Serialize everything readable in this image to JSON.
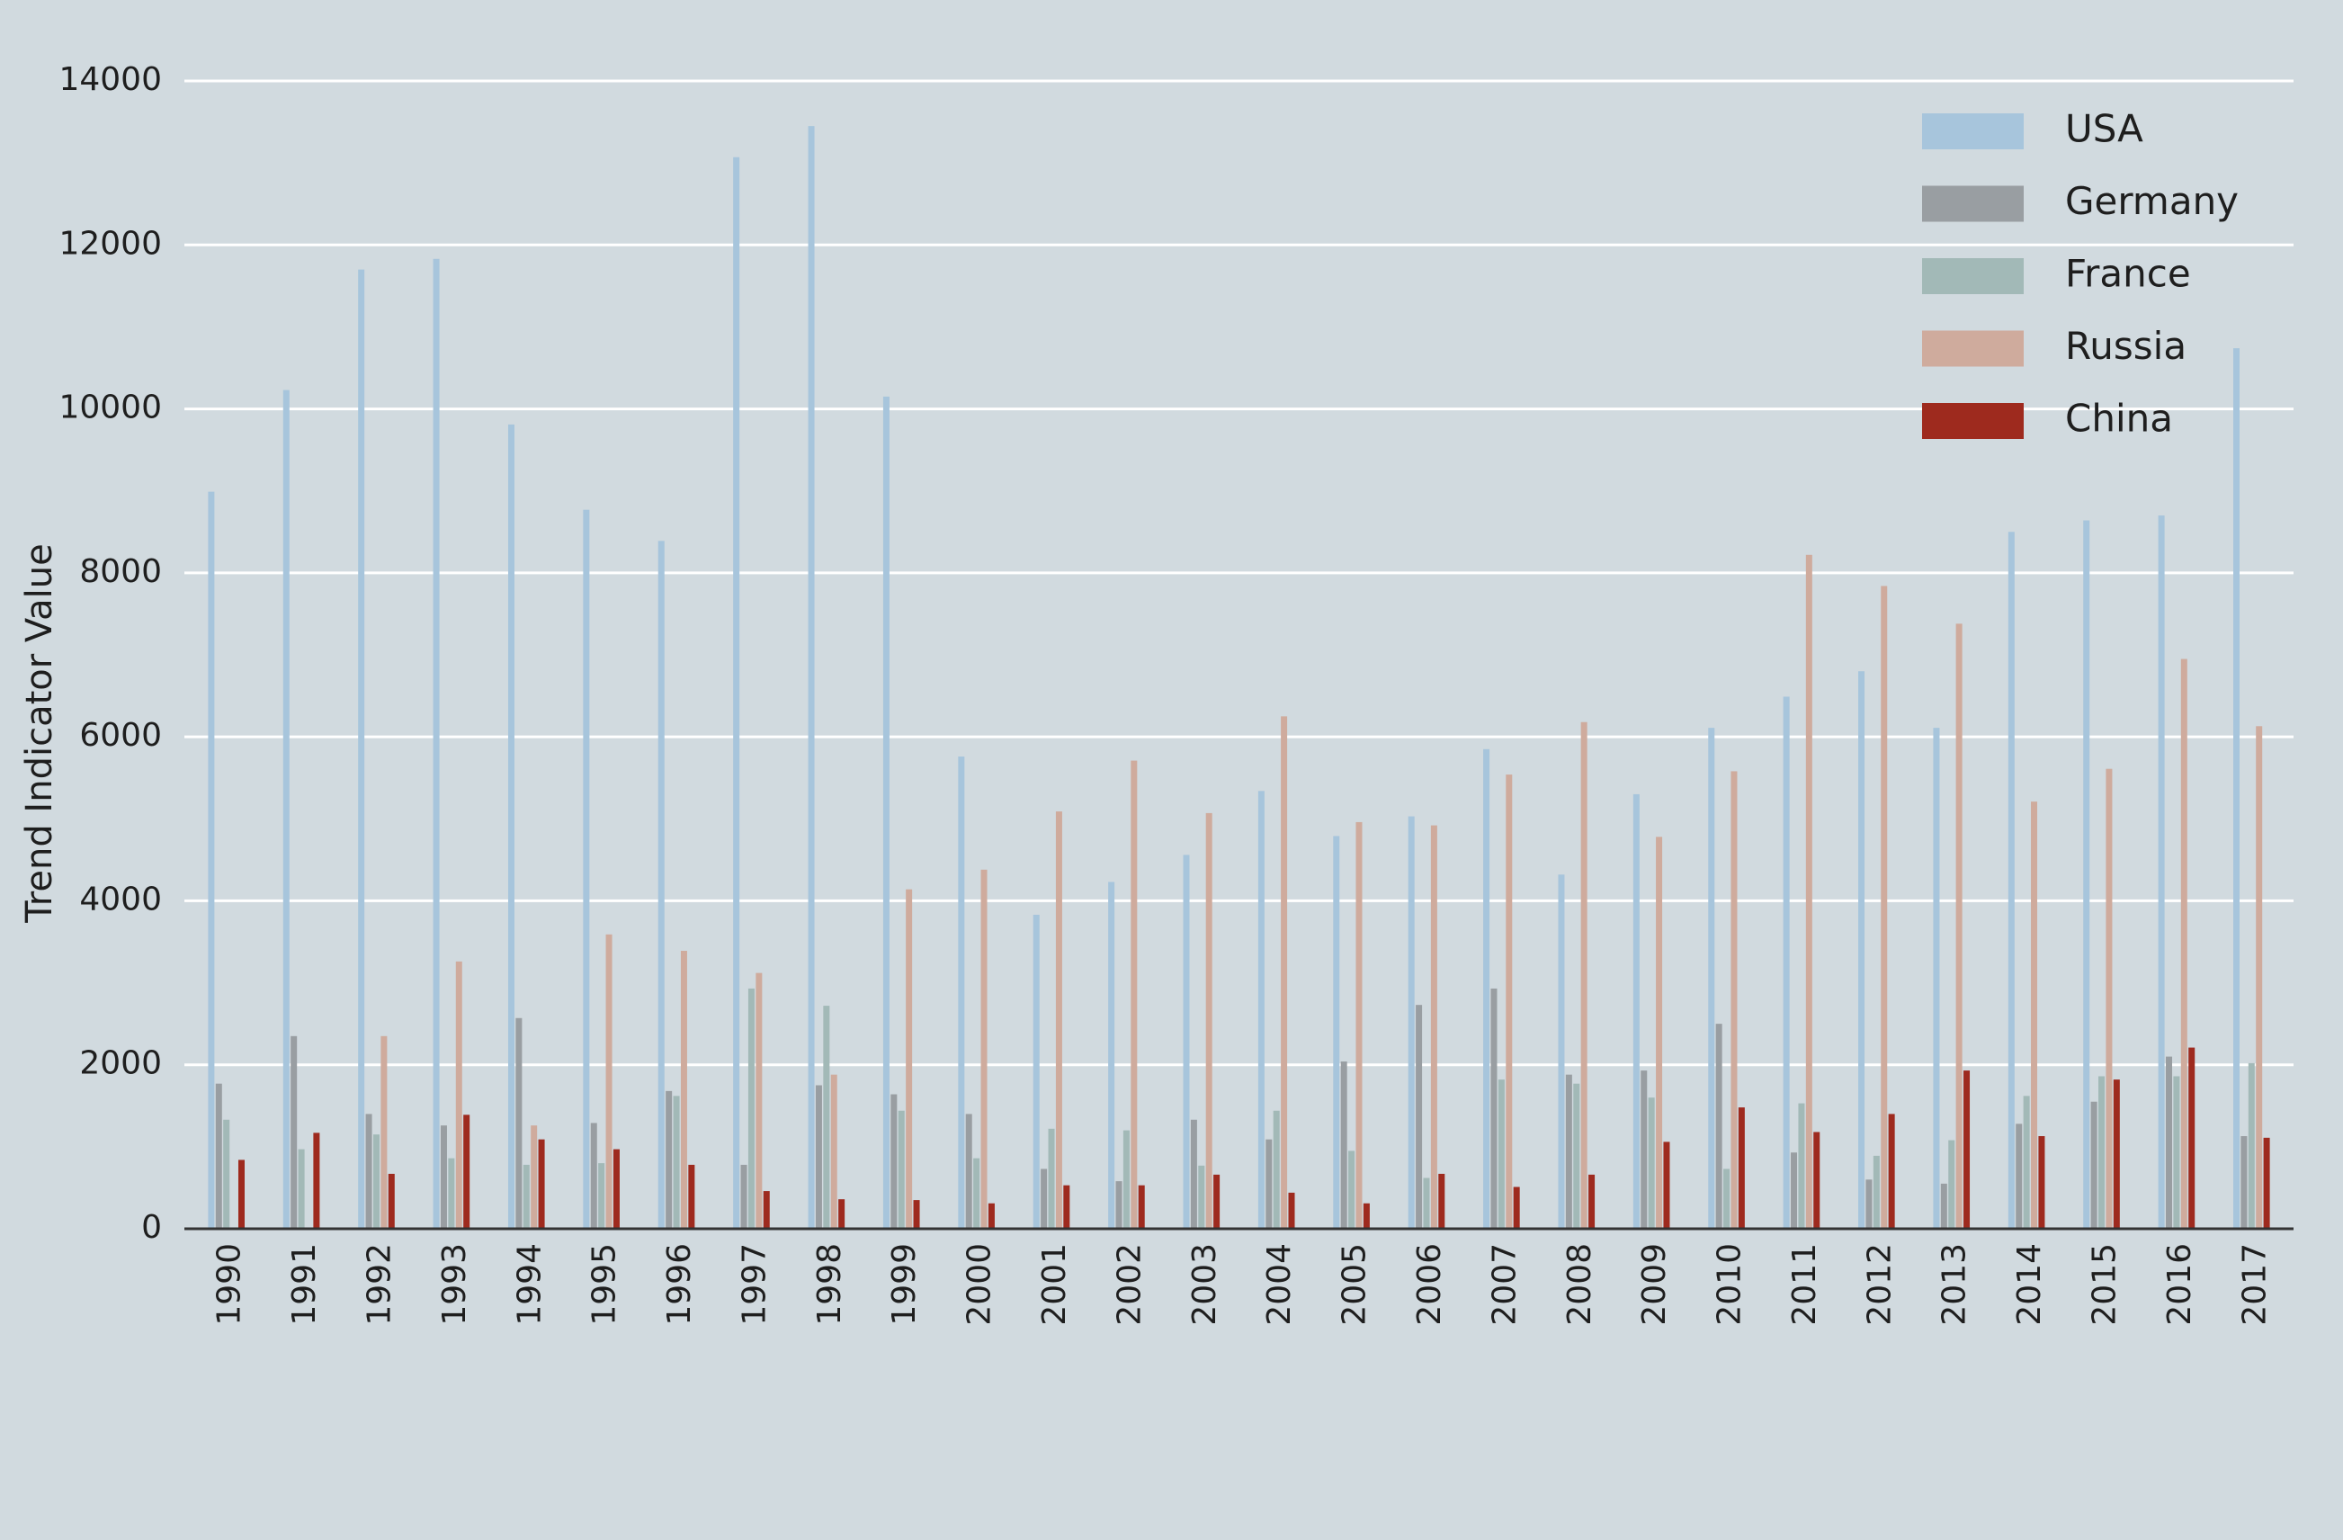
{
  "chart_data": {
    "type": "bar",
    "y_label": "Trend Indicator Value",
    "categories": [
      "1990",
      "1991",
      "1992",
      "1993",
      "1994",
      "1995",
      "1996",
      "1997",
      "1998",
      "1999",
      "2000",
      "2001",
      "2002",
      "2003",
      "2004",
      "2005",
      "2006",
      "2007",
      "2008",
      "2009",
      "2010",
      "2011",
      "2012",
      "2013",
      "2014",
      "2015",
      "2016",
      "2017"
    ],
    "series": [
      {
        "name": "USA",
        "color": "#a7c5dc",
        "values": [
          8990,
          10230,
          11700,
          11830,
          9810,
          8770,
          8390,
          13070,
          13450,
          10150,
          5760,
          3830,
          4230,
          4560,
          5340,
          4790,
          5030,
          5850,
          4320,
          5300,
          6110,
          6490,
          6800,
          6110,
          8500,
          8640,
          8700,
          10740
        ]
      },
      {
        "name": "Germany",
        "color": "#999ea2",
        "values": [
          1770,
          2350,
          1400,
          1260,
          2570,
          1290,
          1680,
          780,
          1750,
          1640,
          1400,
          730,
          580,
          1330,
          1090,
          2040,
          2730,
          2930,
          1880,
          1930,
          2500,
          930,
          600,
          550,
          1280,
          1550,
          2100,
          1130
        ]
      },
      {
        "name": "France",
        "color": "#a2b9b7",
        "values": [
          1330,
          970,
          1150,
          860,
          780,
          800,
          1620,
          2930,
          2720,
          1440,
          860,
          1220,
          1200,
          770,
          1440,
          950,
          620,
          1820,
          1770,
          1600,
          730,
          1530,
          890,
          1080,
          1620,
          1860,
          1860,
          2020
        ]
      },
      {
        "name": "Russia",
        "color": "#cfab9d",
        "values": [
          0,
          0,
          2350,
          3260,
          1260,
          3590,
          3390,
          3120,
          1880,
          4140,
          4380,
          5090,
          5710,
          5070,
          6250,
          4960,
          4920,
          5540,
          6180,
          4780,
          5580,
          8220,
          7840,
          7380,
          5210,
          5610,
          6950,
          6130
        ]
      },
      {
        "name": "China",
        "color": "#9e2a1e",
        "values": [
          840,
          1170,
          670,
          1390,
          1090,
          970,
          780,
          460,
          360,
          350,
          310,
          530,
          530,
          660,
          440,
          310,
          670,
          510,
          660,
          1060,
          1480,
          1180,
          1400,
          1930,
          1130,
          1820,
          2210,
          1110
        ]
      }
    ],
    "ylim": [
      0,
      14000
    ],
    "yticks": [
      0,
      2000,
      4000,
      6000,
      8000,
      10000,
      12000,
      14000
    ],
    "grid": true,
    "legend": "upper right"
  }
}
